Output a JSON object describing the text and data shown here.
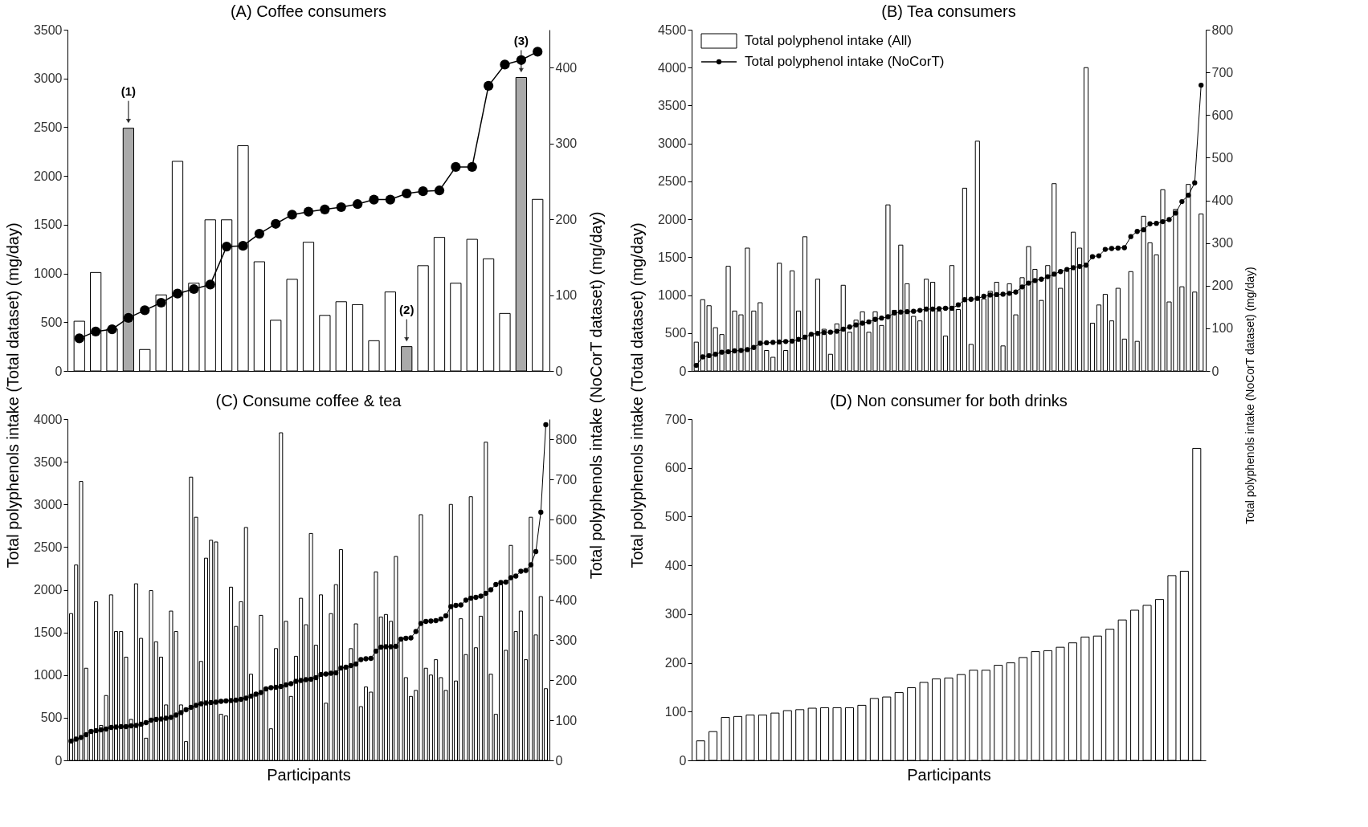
{
  "chart_data": [
    {
      "type": "bar",
      "title": "(A) Coffee consumers",
      "ylabel": "Total polyphenols intake (Total dataset) (mg/day)",
      "y2label": "Total polyphenols intake (NoCorT dataset) (mg/day)",
      "categories": [
        null,
        null,
        null,
        null,
        null,
        null,
        null,
        null,
        null,
        null,
        null,
        null,
        null,
        null,
        null,
        null,
        null,
        null,
        null,
        null,
        null,
        null,
        null,
        null,
        null,
        null,
        null,
        null,
        null
      ],
      "ylim": [
        0,
        3500
      ],
      "yticks": [
        0,
        500,
        1000,
        1500,
        2000,
        2500,
        3000,
        3500
      ],
      "y2lim": [
        0,
        450
      ],
      "y2ticks": [
        0,
        100,
        200,
        300,
        400
      ],
      "tick_labels": "y",
      "series": [
        {
          "type": "bar",
          "colors": [
            "#ffffff",
            "#ffffff",
            "#ffffff",
            "#aaaaaa",
            "#ffffff",
            "#ffffff",
            "#ffffff",
            "#ffffff",
            "#ffffff",
            "#ffffff",
            "#ffffff",
            "#ffffff",
            "#ffffff",
            "#ffffff",
            "#ffffff",
            "#ffffff",
            "#ffffff",
            "#ffffff",
            "#ffffff",
            "#ffffff",
            "#aaaaaa",
            "#ffffff",
            "#ffffff",
            "#ffffff",
            "#ffffff",
            "#ffffff",
            "#ffffff",
            "#aaaaaa",
            "#ffffff"
          ],
          "values": [
            510,
            1010,
            430,
            2490,
            220,
            780,
            2150,
            900,
            1550,
            1550,
            2310,
            1120,
            520,
            940,
            1320,
            570,
            710,
            680,
            310,
            810,
            250,
            1080,
            1370,
            900,
            1350,
            1150,
            590,
            3010,
            1760
          ]
        },
        {
          "type": "line",
          "axis": "y2",
          "color": "#000000",
          "marker": "circle",
          "line_style": "solid",
          "values": [
            43,
            52,
            55,
            70,
            80,
            90,
            102,
            108,
            114,
            164,
            165,
            181,
            194,
            206,
            210,
            213,
            216,
            220,
            226,
            226,
            234,
            237,
            238,
            269,
            269,
            376,
            404,
            410,
            421
          ]
        }
      ],
      "annotations": [
        {
          "text": "(1)",
          "y": 2490
        },
        {
          "text": "(2)",
          "y": 250
        },
        {
          "text": "(3)",
          "y": 3010
        }
      ]
    },
    {
      "type": "bar",
      "title": "(B) Tea consumers",
      "ylabel": "Total polyphenols intake (Total dataset) (mg/day)",
      "y2label": "Total polyphenols intake (NoCorT dataset) (mg/day)",
      "categories": [
        null,
        null,
        null,
        null,
        null,
        null,
        null,
        null,
        null,
        null,
        null,
        null,
        null,
        null,
        null,
        null,
        null,
        null,
        null,
        null,
        null,
        null,
        null,
        null,
        null,
        null,
        null,
        null,
        null,
        null,
        null,
        null,
        null,
        null,
        null,
        null,
        null,
        null,
        null,
        null,
        null,
        null,
        null,
        null,
        null,
        null,
        null,
        null,
        null,
        null,
        null,
        null,
        null,
        null,
        null,
        null,
        null,
        null,
        null,
        null,
        null,
        null,
        null,
        null,
        null,
        null,
        null,
        null,
        null,
        null,
        null,
        null,
        null,
        null,
        null,
        null,
        null,
        null,
        null,
        null
      ],
      "ylim": [
        0,
        4500
      ],
      "yticks": [
        0,
        500,
        1000,
        1500,
        2000,
        2500,
        3000,
        3500,
        4000,
        4500
      ],
      "y2lim": [
        0,
        800
      ],
      "y2ticks": [
        0,
        100,
        200,
        300,
        400,
        500,
        600,
        700,
        800
      ],
      "tick_labels": "y",
      "legend": "top left",
      "series": [
        {
          "type": "bar",
          "name": "Total polyphenol intake (All)",
          "color": "#ffffff",
          "values": [
            380,
            940,
            860,
            570,
            480,
            1380,
            790,
            740,
            1620,
            790,
            900,
            270,
            180,
            1420,
            270,
            1320,
            790,
            1770,
            480,
            1210,
            550,
            220,
            620,
            1130,
            510,
            670,
            780,
            510,
            780,
            600,
            2190,
            800,
            1660,
            1150,
            720,
            660,
            1210,
            1170,
            790,
            460,
            1390,
            810,
            2410,
            350,
            3030,
            950,
            1050,
            1170,
            330,
            1150,
            740,
            1230,
            1640,
            1340,
            930,
            1390,
            2470,
            1090,
            1320,
            1830,
            1620,
            4000,
            630,
            870,
            1010,
            660,
            1090,
            420,
            1310,
            390,
            2040,
            1690,
            1530,
            2390,
            910,
            2130,
            1110,
            2460,
            1040,
            2070
          ]
        },
        {
          "type": "line",
          "axis": "y2",
          "name": "Total polyphenol intake (NoCorT)",
          "color": "#000000",
          "marker": "circle",
          "line_style": "solid",
          "values": [
            13,
            33,
            36,
            39,
            44,
            45,
            47,
            48,
            50,
            55,
            65,
            66,
            67,
            68,
            69,
            70,
            74,
            79,
            86,
            88,
            90,
            91,
            93,
            98,
            103,
            108,
            112,
            115,
            121,
            124,
            127,
            136,
            138,
            139,
            140,
            142,
            145,
            145,
            146,
            147,
            147,
            155,
            167,
            168,
            170,
            175,
            178,
            179,
            180,
            182,
            185,
            197,
            206,
            212,
            215,
            221,
            227,
            233,
            238,
            242,
            245,
            248,
            268,
            270,
            285,
            287,
            288,
            289,
            315,
            327,
            331,
            345,
            346,
            350,
            355,
            370,
            397,
            412,
            441,
            670
          ]
        }
      ]
    },
    {
      "type": "bar",
      "title": "(C) Consume coffee & tea",
      "xlabel": "Participants",
      "categories": [
        null,
        null,
        null,
        null,
        null,
        null,
        null,
        null,
        null,
        null,
        null,
        null,
        null,
        null,
        null,
        null,
        null,
        null,
        null,
        null,
        null,
        null,
        null,
        null,
        null,
        null,
        null,
        null,
        null,
        null,
        null,
        null,
        null,
        null,
        null,
        null,
        null,
        null,
        null,
        null,
        null,
        null,
        null,
        null,
        null,
        null,
        null,
        null,
        null,
        null,
        null,
        null,
        null,
        null,
        null,
        null,
        null,
        null,
        null,
        null,
        null,
        null,
        null,
        null,
        null,
        null,
        null,
        null,
        null,
        null,
        null,
        null,
        null,
        null,
        null,
        null,
        null,
        null,
        null,
        null,
        null,
        null,
        null,
        null,
        null,
        null,
        null,
        null,
        null,
        null,
        null,
        null,
        null,
        null,
        null,
        null
      ],
      "ylim": [
        0,
        4000
      ],
      "yticks": [
        0,
        500,
        1000,
        1500,
        2000,
        2500,
        3000,
        3500,
        4000
      ],
      "y2lim": [
        0,
        850
      ],
      "y2ticks": [
        0,
        100,
        200,
        300,
        400,
        500,
        600,
        700,
        800
      ],
      "tick_labels": "y",
      "series": [
        {
          "type": "bar",
          "color": "#ffffff",
          "values": [
            1720,
            2290,
            3270,
            1080,
            350,
            1860,
            410,
            760,
            1940,
            1510,
            1510,
            1210,
            480,
            2070,
            1430,
            260,
            1990,
            1390,
            1210,
            650,
            1750,
            1510,
            650,
            220,
            3320,
            2850,
            1160,
            2370,
            2580,
            2560,
            540,
            520,
            2030,
            1570,
            1860,
            2730,
            1010,
            770,
            1700,
            840,
            370,
            1310,
            3840,
            1630,
            750,
            1220,
            1900,
            1590,
            2660,
            1350,
            1940,
            670,
            1720,
            2060,
            2470,
            1070,
            1310,
            1600,
            630,
            860,
            800,
            2210,
            1680,
            1710,
            1630,
            2390,
            1420,
            970,
            750,
            820,
            2880,
            1080,
            1000,
            1180,
            970,
            820,
            3000,
            930,
            1660,
            1240,
            3090,
            1320,
            1690,
            3730,
            1010,
            540,
            2060,
            1290,
            2520,
            1510,
            1750,
            1180,
            2850,
            1470,
            1920,
            840
          ]
        },
        {
          "type": "line",
          "axis": "y2",
          "color": "#000000",
          "marker": "circle",
          "line_style": "solid",
          "values": [
            48,
            53,
            57,
            64,
            72,
            74,
            76,
            78,
            82,
            83,
            84,
            84,
            86,
            87,
            90,
            94,
            100,
            102,
            103,
            105,
            107,
            113,
            119,
            126,
            132,
            137,
            141,
            143,
            144,
            145,
            147,
            148,
            149,
            150,
            152,
            155,
            160,
            165,
            169,
            178,
            181,
            182,
            184,
            188,
            191,
            197,
            199,
            201,
            202,
            206,
            214,
            215,
            217,
            218,
            230,
            232,
            236,
            240,
            251,
            253,
            254,
            272,
            282,
            283,
            283,
            284,
            302,
            304,
            305,
            321,
            341,
            346,
            347,
            348,
            352,
            360,
            383,
            386,
            387,
            399,
            404,
            406,
            409,
            416,
            425,
            438,
            443,
            444,
            455,
            459,
            471,
            473,
            487,
            520,
            618,
            836
          ]
        }
      ]
    },
    {
      "type": "bar",
      "title": "(D) Non consumer for both drinks",
      "xlabel": "Participants",
      "categories": [
        null,
        null,
        null,
        null,
        null,
        null,
        null,
        null,
        null,
        null,
        null,
        null,
        null,
        null,
        null,
        null,
        null,
        null,
        null,
        null,
        null,
        null,
        null,
        null,
        null,
        null,
        null,
        null,
        null,
        null,
        null,
        null,
        null,
        null,
        null,
        null,
        null,
        null,
        null,
        null,
        null
      ],
      "ylim": [
        0,
        700
      ],
      "yticks": [
        0,
        100,
        200,
        300,
        400,
        500,
        600,
        700
      ],
      "tick_labels": "y",
      "series": [
        {
          "type": "bar",
          "color": "#ffffff",
          "values": [
            40,
            59,
            88,
            90,
            93,
            93,
            97,
            102,
            104,
            107,
            108,
            108,
            108,
            113,
            127,
            130,
            139,
            149,
            160,
            167,
            169,
            176,
            185,
            185,
            195,
            200,
            211,
            223,
            225,
            232,
            241,
            253,
            255,
            269,
            288,
            308,
            318,
            330,
            379,
            388,
            640
          ]
        }
      ]
    }
  ]
}
